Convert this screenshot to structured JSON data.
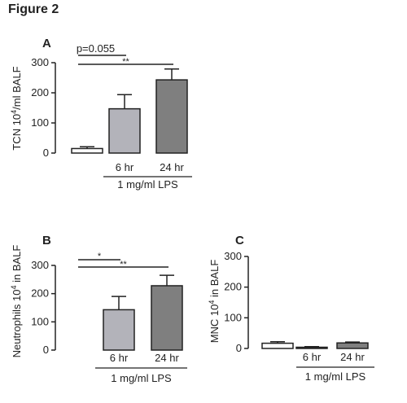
{
  "figure": {
    "title": "Figure 2"
  },
  "chart_data": [
    {
      "panel": "A",
      "type": "bar",
      "ylabel_main": "TCN 10",
      "ylabel_sup": "4",
      "ylabel_rest": "/ml BALF",
      "ylim": [
        0,
        300
      ],
      "yticks": [
        0,
        100,
        200,
        300
      ],
      "categories": [
        "",
        "6 hr",
        "24 hr"
      ],
      "values": [
        15,
        147,
        243
      ],
      "errors": [
        6,
        47,
        36
      ],
      "colors": [
        "#ffffff",
        "#b3b3ba",
        "#7f7f7f"
      ],
      "group_label": "1 mg/ml LPS",
      "significance": [
        {
          "label": "p=0.055",
          "from": 0,
          "to": 1
        },
        {
          "label": "**",
          "from": 0,
          "to": 2
        }
      ]
    },
    {
      "panel": "B",
      "type": "bar",
      "ylabel_main": "Neutrophils 10",
      "ylabel_sup": "4",
      "ylabel_rest": " in BALF",
      "ylim": [
        0,
        300
      ],
      "yticks": [
        0,
        100,
        200,
        300
      ],
      "categories": [
        "",
        "6 hr",
        "24 hr"
      ],
      "values": [
        0,
        143,
        228
      ],
      "errors": [
        0,
        47,
        37
      ],
      "colors": [
        "#ffffff",
        "#b3b3ba",
        "#7f7f7f"
      ],
      "group_label": "1 mg/ml LPS",
      "significance": [
        {
          "label": "*",
          "from": 0,
          "to": 1
        },
        {
          "label": "**",
          "from": 0,
          "to": 2
        }
      ]
    },
    {
      "panel": "C",
      "type": "bar",
      "ylabel_main": "MNC 10",
      "ylabel_sup": "4",
      "ylabel_rest": " in BALF",
      "ylim": [
        0,
        300
      ],
      "yticks": [
        0,
        100,
        200,
        300
      ],
      "categories": [
        "",
        "6 hr",
        "24 hr"
      ],
      "values": [
        17,
        4,
        18
      ],
      "errors": [
        5,
        2,
        3
      ],
      "colors": [
        "#ffffff",
        "#b3b3ba",
        "#7f7f7f"
      ],
      "group_label": "1 mg/ml LPS",
      "significance": []
    }
  ]
}
